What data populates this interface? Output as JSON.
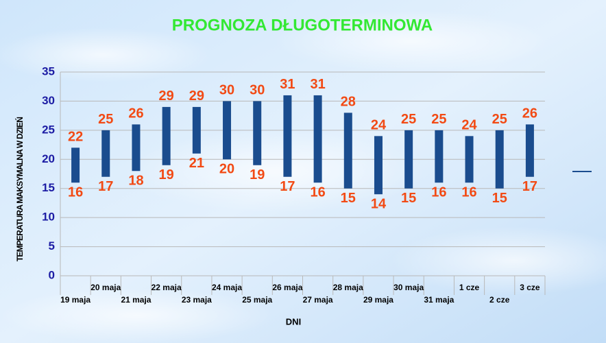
{
  "chart_data": {
    "type": "range_bar",
    "title": "PROGNOZA DŁUGOTERMINOWA",
    "x_label": "DNI",
    "y_label": "TEMPERATURA MAKSYMALNA W DZIEŃ",
    "categories": [
      "19 maja",
      "20 maja",
      "21 maja",
      "22 maja",
      "23 maja",
      "24 maja",
      "25 maja",
      "26 maja",
      "27 maja",
      "28 maja",
      "29 maja",
      "30 maja",
      "31 maja",
      "1 cze",
      "2 cze",
      "3 cze"
    ],
    "low": [
      16,
      17,
      18,
      19,
      21,
      20,
      19,
      17,
      16,
      15,
      14,
      15,
      16,
      16,
      15,
      17
    ],
    "high": [
      22,
      25,
      26,
      29,
      29,
      30,
      30,
      31,
      31,
      28,
      24,
      25,
      25,
      24,
      25,
      26
    ],
    "color": "#1a4c8e",
    "ylim": [
      0,
      35
    ],
    "yticks": [
      0,
      5,
      10,
      15,
      20,
      25,
      30,
      35
    ],
    "grid": true,
    "legend": "right"
  }
}
